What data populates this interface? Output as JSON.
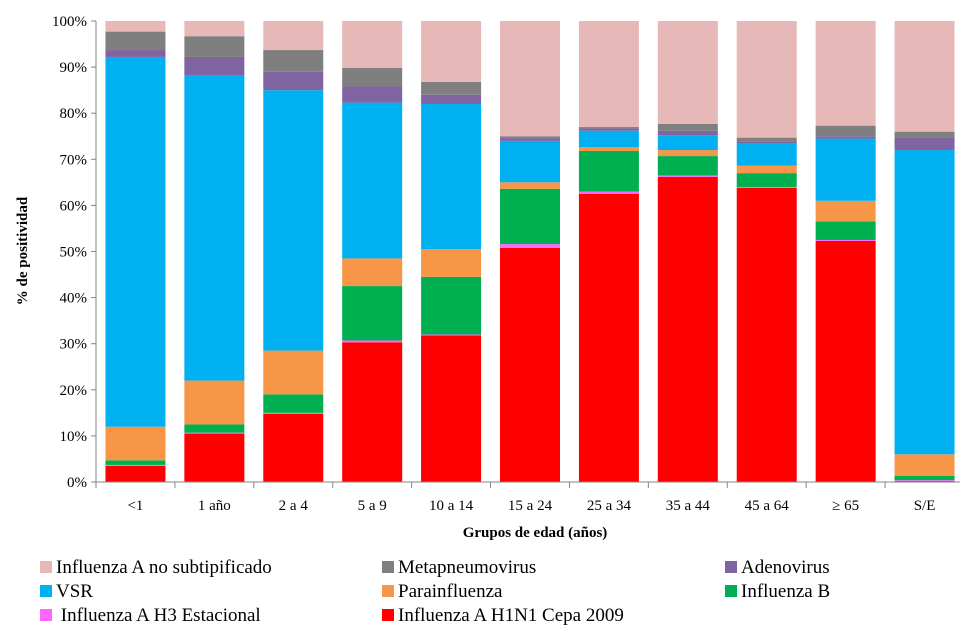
{
  "chart_data": {
    "type": "bar",
    "stacked": true,
    "normalized": true,
    "xlabel": "Grupos de edad (años)",
    "ylabel": "% de positividad",
    "ylim": [
      0,
      100
    ],
    "ytick_step": 10,
    "ytick_suffix": "%",
    "grid": false,
    "legend_position": "bottom",
    "categories": [
      "<1",
      "1 año",
      "2 a 4",
      "5 a 9",
      "10 a 14",
      "15 a 24",
      "25 a 34",
      "35 a 44",
      "45 a 64",
      "≥ 65",
      "S/E"
    ],
    "series": [
      {
        "name": "Influenza A H1N1 Cepa 2009",
        "color": "#ff0000",
        "values": [
          3.5,
          10.5,
          14.8,
          30.3,
          31.8,
          50.8,
          62.5,
          66.2,
          63.8,
          52.3,
          0.2
        ]
      },
      {
        "name": " Influenza A H3 Estacional",
        "color": "#ff66ff",
        "values": [
          0.2,
          0.2,
          0.2,
          0.4,
          0.2,
          0.8,
          0.5,
          0.3,
          0.2,
          0.2,
          0.2
        ]
      },
      {
        "name": "Influenza B",
        "color": "#00b050",
        "values": [
          1.0,
          1.8,
          4.0,
          11.8,
          12.5,
          12.0,
          8.8,
          4.2,
          3.0,
          4.0,
          0.9
        ]
      },
      {
        "name": "Parainfluenza",
        "color": "#f79646",
        "values": [
          7.3,
          9.5,
          9.5,
          6.0,
          6.0,
          1.4,
          0.8,
          1.3,
          1.6,
          4.5,
          4.7
        ]
      },
      {
        "name": "VSR",
        "color": "#00b0f0",
        "values": [
          80.2,
          66.2,
          56.5,
          33.8,
          31.5,
          9.0,
          3.6,
          3.2,
          4.8,
          13.5,
          66.0
        ]
      },
      {
        "name": "Adenovirus",
        "color": "#8064a2",
        "values": [
          1.5,
          4.0,
          4.0,
          3.5,
          2.0,
          0.6,
          0.5,
          1.0,
          0.5,
          0.5,
          2.8
        ]
      },
      {
        "name": "Metapneumovirus",
        "color": "#7f7f7f",
        "values": [
          4.0,
          4.5,
          4.7,
          4.0,
          2.8,
          0.4,
          0.3,
          1.5,
          0.8,
          2.3,
          1.2
        ]
      },
      {
        "name": "Influenza A no subtipificado",
        "color": "#e6b8b7",
        "values": [
          2.3,
          3.3,
          6.3,
          10.2,
          13.2,
          25.0,
          23.0,
          22.3,
          25.3,
          22.7,
          24.0
        ]
      }
    ],
    "legend_order": [
      7,
      6,
      5,
      4,
      3,
      2,
      1,
      0
    ]
  }
}
